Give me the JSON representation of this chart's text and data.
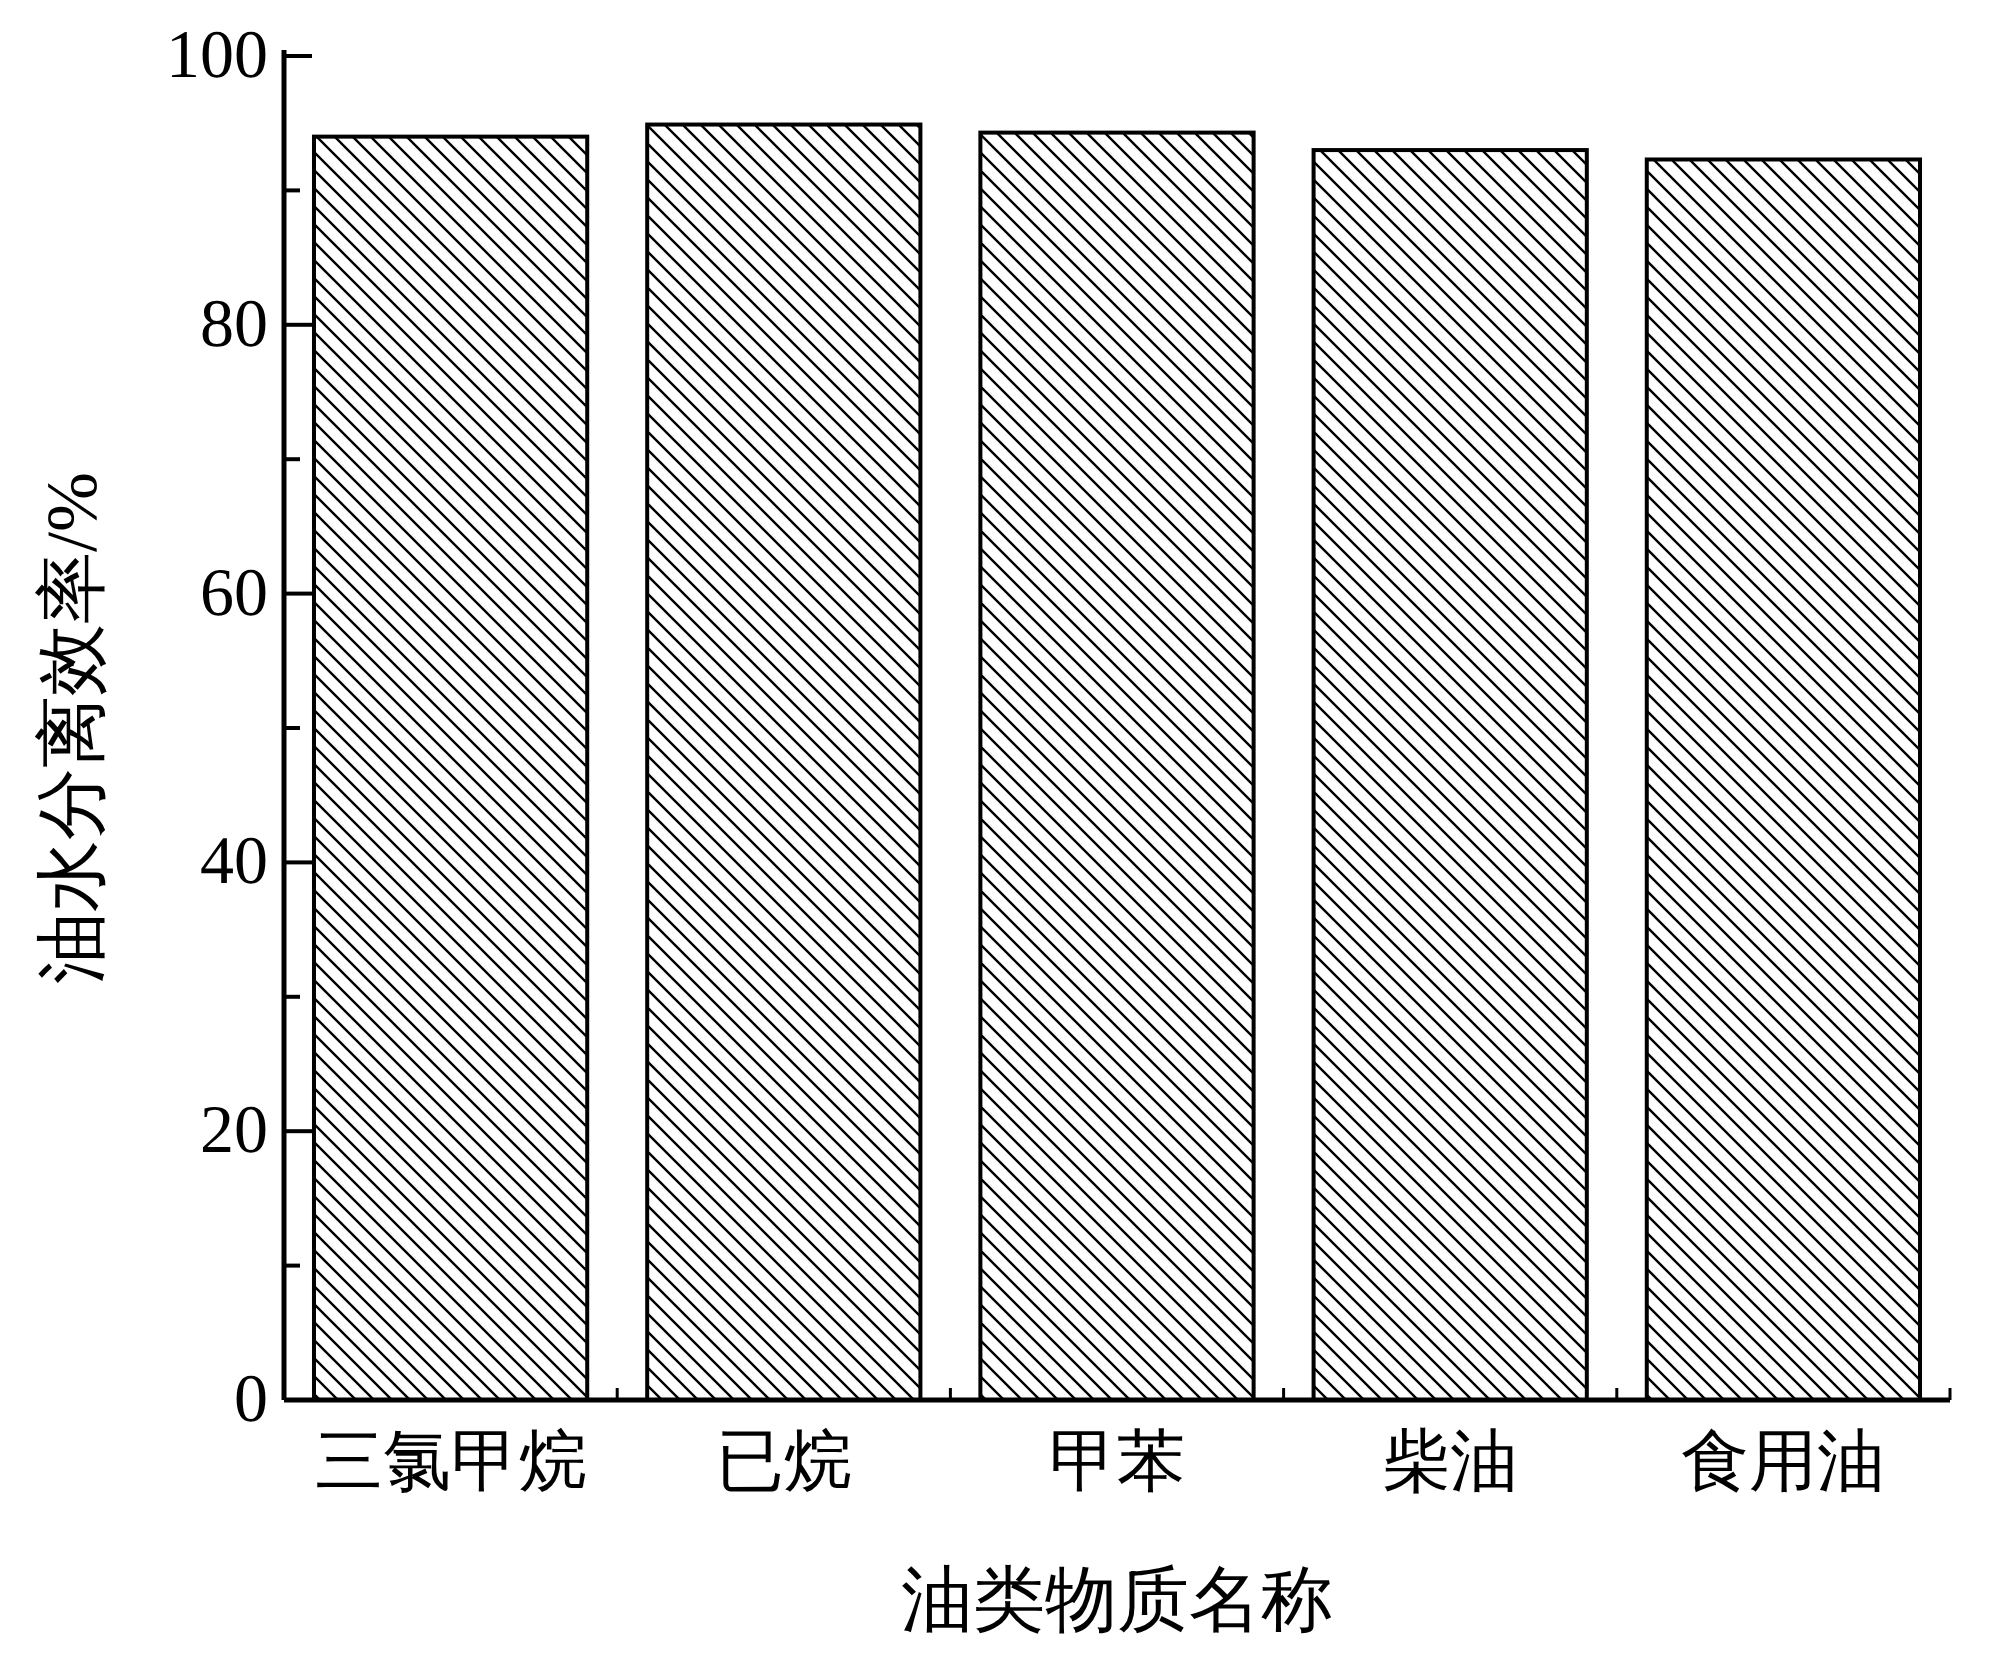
{
  "chart_data": {
    "type": "bar",
    "xlabel": "油类物质名称",
    "ylabel": "油水分离效率/%",
    "categories": [
      "三氯甲烷",
      "已烷",
      "甲苯",
      "柴油",
      "食用油"
    ],
    "values": [
      94.0,
      94.9,
      94.3,
      93.0,
      92.3
    ],
    "color": "#000000",
    "ylim": [
      0,
      100
    ],
    "yticks": [
      0,
      {
        "value": 10,
        "label": null
      },
      20,
      {
        "value": 30,
        "label": null
      },
      40,
      {
        "value": 50,
        "label": null
      },
      60,
      {
        "value": 70,
        "label": null
      },
      80,
      {
        "value": 90,
        "label": null
      },
      100
    ],
    "grid": false
  }
}
